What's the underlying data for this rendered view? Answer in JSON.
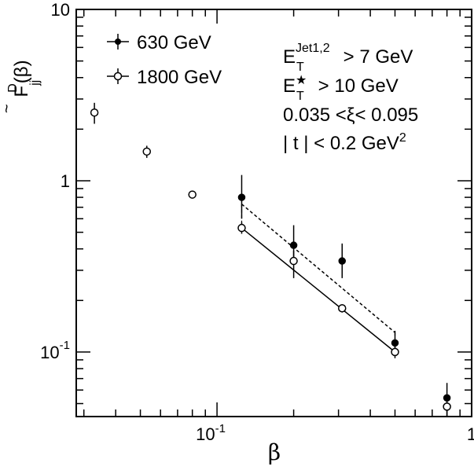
{
  "chart_data": {
    "type": "scatter",
    "x_scale": "log",
    "y_scale": "log",
    "xlim": [
      0.028,
      1.0
    ],
    "ylim": [
      0.042,
      10.0
    ],
    "xlabel": "β",
    "ylabel": {
      "base": "F",
      "tilde": "~",
      "sup": "D",
      "sub": "jj",
      "arg": "(β)"
    },
    "x_ticks": [
      {
        "value": 0.1,
        "base": "10",
        "exp": "-1"
      },
      {
        "value": 1.0,
        "base": "1",
        "exp": ""
      }
    ],
    "y_ticks": [
      {
        "value": 0.1,
        "base": "10",
        "exp": "-1"
      },
      {
        "value": 1.0,
        "base": "1",
        "exp": ""
      },
      {
        "value": 10.0,
        "base": "10",
        "exp": ""
      }
    ],
    "legend_position": "top-left",
    "series": [
      {
        "name": "630 GeV",
        "marker": "filled-circle",
        "points": [
          {
            "x": 0.125,
            "y": 0.8,
            "err_lo": 0.2,
            "err_hi": 0.28
          },
          {
            "x": 0.2,
            "y": 0.42,
            "err_lo": 0.09,
            "err_hi": 0.13
          },
          {
            "x": 0.31,
            "y": 0.34,
            "err_lo": 0.07,
            "err_hi": 0.09
          },
          {
            "x": 0.5,
            "y": 0.113,
            "err_lo": 0.015,
            "err_hi": 0.02
          },
          {
            "x": 0.8,
            "y": 0.054,
            "err_lo": 0.006,
            "err_hi": 0.012
          }
        ]
      },
      {
        "name": "1800 GeV",
        "marker": "open-circle",
        "points": [
          {
            "x": 0.033,
            "y": 2.5,
            "err_lo": 0.35,
            "err_hi": 0.35
          },
          {
            "x": 0.053,
            "y": 1.48,
            "err_lo": 0.12,
            "err_hi": 0.12
          },
          {
            "x": 0.08,
            "y": 0.83,
            "err_lo": 0.04,
            "err_hi": 0.04
          },
          {
            "x": 0.125,
            "y": 0.53,
            "err_lo": 0.04,
            "err_hi": 0.04
          },
          {
            "x": 0.2,
            "y": 0.34,
            "err_lo": 0.07,
            "err_hi": 0.05
          },
          {
            "x": 0.31,
            "y": 0.18,
            "err_lo": 0.01,
            "err_hi": 0.01
          },
          {
            "x": 0.5,
            "y": 0.1,
            "err_lo": 0.008,
            "err_hi": 0.008
          },
          {
            "x": 0.8,
            "y": 0.048,
            "err_lo": 0.006,
            "err_hi": 0.006
          }
        ]
      }
    ],
    "fits": [
      {
        "series": "630 GeV",
        "style": "dashed",
        "x": [
          0.125,
          0.5
        ],
        "y": [
          0.73,
          0.13
        ]
      },
      {
        "series": "1800 GeV",
        "style": "solid",
        "x": [
          0.125,
          0.5
        ],
        "y": [
          0.53,
          0.1
        ]
      }
    ],
    "annotations": [
      {
        "base": "E",
        "sub": "T",
        "sup": "Jet1,2",
        "text": " > 7 GeV"
      },
      {
        "base": "E",
        "sub": "T",
        "sup": "★",
        "text": " > 10 GeV"
      },
      {
        "base": "0.035 <ξ< 0.095",
        "sub": "",
        "sup": "",
        "text": ""
      },
      {
        "base": "| t | < 0.2 GeV",
        "sub": "",
        "sup": "2",
        "text": ""
      }
    ]
  }
}
